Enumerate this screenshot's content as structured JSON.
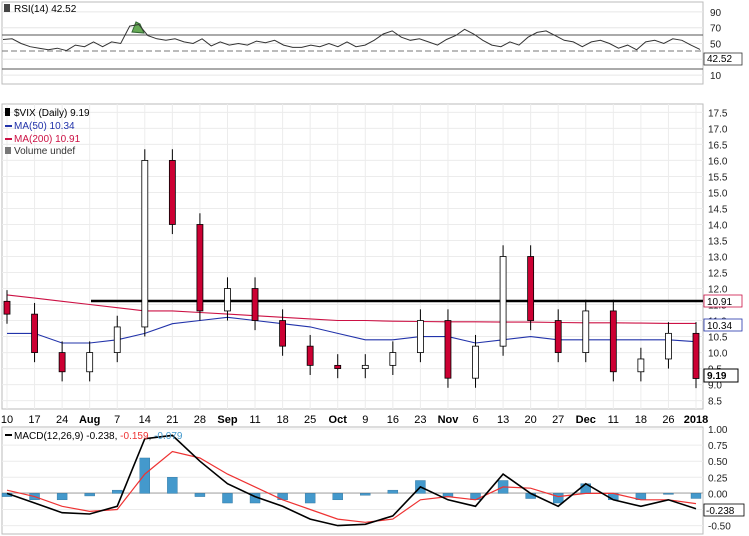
{
  "rsi_panel": {
    "title": "RSI(14) 42.52",
    "axis_labels": [
      "90",
      "70",
      "50",
      "30",
      "10"
    ],
    "current_badge": "42.52"
  },
  "price_panel": {
    "title_symbol": "$VIX (Daily) 9.19",
    "legend_ma50": "MA(50) 10.34",
    "legend_ma200": "MA(200) 10.91",
    "legend_volume": "Volume undef",
    "axis_labels": [
      "17.5",
      "17.0",
      "16.5",
      "16.0",
      "15.5",
      "15.0",
      "14.5",
      "14.0",
      "13.5",
      "13.0",
      "12.5",
      "12.0",
      "11.5",
      "11.0",
      "10.5",
      "10.0",
      "9.5",
      "9.0",
      "8.5"
    ],
    "badge_ma200": "10.91",
    "badge_ma50": "10.34",
    "badge_last": "9.19",
    "colors": {
      "up_candle": "#ffffff",
      "down_candle": "#cc0033",
      "ma50": "#2233aa",
      "ma200": "#cc1144",
      "support_line": "#000000"
    }
  },
  "date_axis": {
    "labels": [
      "10",
      "17",
      "24",
      "Aug",
      "7",
      "14",
      "21",
      "28",
      "Sep",
      "11",
      "18",
      "25",
      "Oct",
      "9",
      "16",
      "23",
      "Nov",
      "6",
      "13",
      "20",
      "27",
      "Dec",
      "11",
      "18",
      "26",
      "2018"
    ]
  },
  "macd_panel": {
    "title": "MACD(12,26,9)",
    "val_macd": "-0.238",
    "val_signal": "-0.159",
    "val_hist": "-0.079",
    "axis_labels": [
      "1.00",
      "0.75",
      "0.50",
      "0.25",
      "0.00",
      "-0.25",
      "-0.50"
    ],
    "badge_macd": "-0.238",
    "colors": {
      "macd": "#000000",
      "signal": "#ee3333",
      "histogram": "#4499cc"
    }
  },
  "chart_data": [
    {
      "type": "line",
      "title": "RSI(14) 42.52",
      "ylim": [
        0,
        100
      ],
      "reference_lines": [
        70,
        50,
        30
      ],
      "series": [
        {
          "name": "RSI(14)",
          "values": [
            55,
            56,
            50,
            46,
            44,
            42,
            44,
            41,
            48,
            46,
            52,
            46,
            52,
            50,
            72,
            74,
            60,
            56,
            54,
            56,
            52,
            50,
            56,
            47,
            52,
            48,
            50,
            48,
            53,
            51,
            54,
            48,
            45,
            45,
            48,
            46,
            50,
            46,
            52,
            46,
            48,
            54,
            62,
            66,
            58,
            54,
            56,
            52,
            48,
            55,
            60,
            68,
            62,
            54,
            48,
            46,
            52,
            48,
            58,
            64,
            66,
            60,
            54,
            52,
            46,
            52,
            54,
            50,
            44,
            48,
            42,
            52,
            54,
            50,
            56,
            54,
            48,
            42.52
          ]
        }
      ]
    },
    {
      "type": "candlestick",
      "title": "$VIX (Daily) 9.19",
      "ylim": [
        8.3,
        17.7
      ],
      "x": [
        "Jul 10",
        "Jul 17",
        "Jul 24",
        "Aug 1",
        "Aug 7",
        "Aug 14",
        "Aug 21",
        "Aug 28",
        "Sep 1",
        "Sep 11",
        "Sep 18",
        "Sep 25",
        "Oct 2",
        "Oct 9",
        "Oct 16",
        "Oct 23",
        "Nov 1",
        "Nov 6",
        "Nov 13",
        "Nov 20",
        "Nov 27",
        "Dec 1",
        "Dec 11",
        "Dec 18",
        "Dec 26",
        "Jan 2 2018"
      ],
      "series": [
        {
          "name": "$VIX close",
          "values": [
            11.2,
            10.0,
            9.4,
            10.0,
            10.8,
            16.0,
            14.0,
            11.3,
            12.0,
            11.0,
            10.2,
            9.6,
            9.5,
            9.6,
            10.0,
            11.0,
            9.2,
            10.2,
            13.0,
            11.0,
            10.0,
            11.3,
            9.4,
            9.8,
            10.6,
            9.19
          ]
        },
        {
          "name": "MA(50)",
          "values": [
            10.6,
            10.6,
            10.3,
            10.3,
            10.4,
            10.6,
            10.9,
            11.0,
            11.1,
            11.0,
            10.9,
            10.8,
            10.6,
            10.4,
            10.4,
            10.5,
            10.5,
            10.3,
            10.4,
            10.5,
            10.4,
            10.4,
            10.4,
            10.4,
            10.4,
            10.34
          ]
        },
        {
          "name": "MA(200)",
          "values": [
            11.8,
            11.7,
            11.6,
            11.5,
            11.4,
            11.3,
            11.3,
            11.25,
            11.2,
            11.15,
            11.1,
            11.05,
            11.0,
            11.0,
            10.98,
            10.97,
            10.96,
            10.96,
            10.95,
            10.95,
            10.94,
            10.93,
            10.93,
            10.92,
            10.91,
            10.91
          ]
        }
      ],
      "annotations": [
        "Horizontal support line at 10.91"
      ]
    },
    {
      "type": "line",
      "title": "MACD(12,26,9) -0.238, -0.159, -0.079",
      "ylim": [
        -0.6,
        1.0
      ],
      "series": [
        {
          "name": "MACD",
          "values": [
            0.0,
            -0.15,
            -0.3,
            -0.32,
            -0.2,
            0.85,
            0.9,
            0.5,
            0.15,
            -0.05,
            -0.2,
            -0.4,
            -0.5,
            -0.48,
            -0.35,
            0.1,
            -0.1,
            -0.2,
            0.3,
            0.0,
            -0.2,
            0.15,
            -0.1,
            -0.2,
            -0.1,
            -0.238
          ]
        },
        {
          "name": "Signal",
          "values": [
            0.05,
            -0.05,
            -0.2,
            -0.28,
            -0.25,
            0.3,
            0.65,
            0.55,
            0.3,
            0.1,
            -0.1,
            -0.25,
            -0.4,
            -0.45,
            -0.4,
            -0.1,
            -0.05,
            -0.1,
            0.1,
            0.08,
            -0.05,
            0.0,
            0.0,
            -0.1,
            -0.1,
            -0.159
          ]
        },
        {
          "name": "Histogram",
          "values": [
            -0.05,
            -0.1,
            -0.1,
            -0.04,
            0.05,
            0.55,
            0.25,
            -0.05,
            -0.15,
            -0.15,
            -0.1,
            -0.15,
            -0.1,
            -0.03,
            0.05,
            0.2,
            -0.05,
            -0.1,
            0.2,
            -0.08,
            -0.15,
            0.15,
            -0.1,
            -0.1,
            0.0,
            -0.079
          ]
        }
      ]
    }
  ]
}
